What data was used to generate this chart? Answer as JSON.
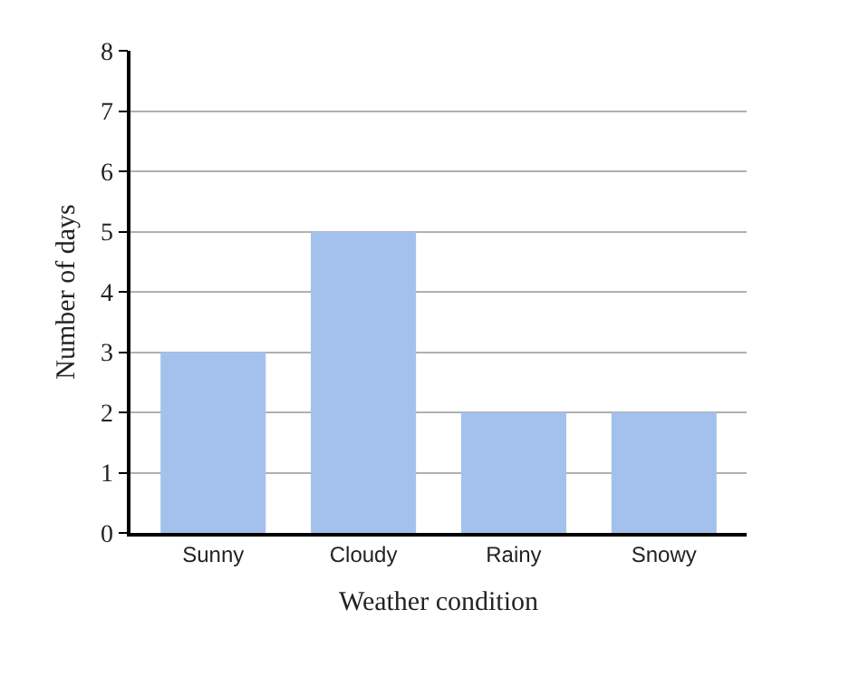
{
  "chart_data": {
    "type": "bar",
    "xlabel": "Weather condition",
    "ylabel": "Number of days",
    "categories": [
      "Sunny",
      "Cloudy",
      "Rainy",
      "Snowy"
    ],
    "values": [
      3,
      5,
      2,
      2
    ],
    "color": "#a4c1ee",
    "ylim": [
      0,
      8
    ],
    "yticks": [
      0,
      1,
      2,
      3,
      4,
      5,
      6,
      7,
      8
    ],
    "grid": "y",
    "legend": false
  }
}
